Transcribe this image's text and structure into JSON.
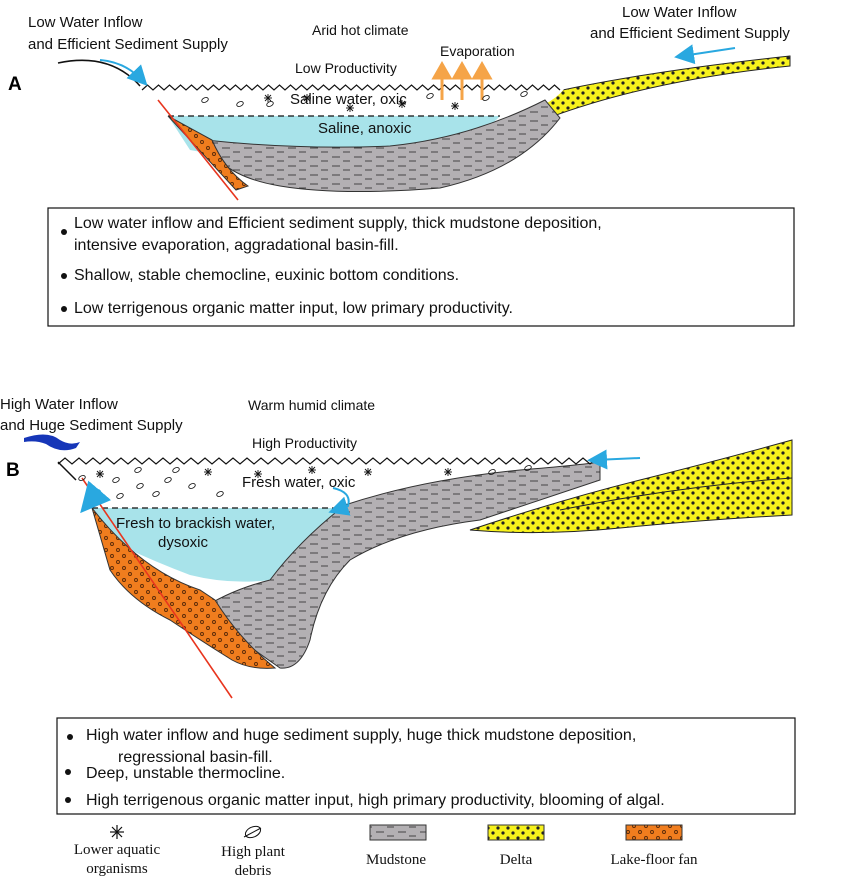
{
  "panel_a": {
    "letter": "A",
    "left_inflow": [
      "Low Water Inflow",
      "and Efficient Sediment Supply"
    ],
    "right_inflow": [
      "Low Water Inflow",
      "and Efficient Sediment Supply"
    ],
    "climate": "Arid hot climate",
    "evaporation": "Evaporation",
    "productivity": "Low Productivity",
    "upper_water": "Saline water, oxic",
    "lower_water": "Saline, anoxic",
    "bullets": [
      [
        "Low  water inflow and Efficient sediment supply,  thick mudstone deposition,",
        "intensive evaporation, aggradational basin-fill."
      ],
      [
        "Shallow, stable chemocline, euxinic bottom conditions."
      ],
      [
        "Low terrigenous organic matter input, low primary productivity."
      ]
    ]
  },
  "panel_b": {
    "letter": "B",
    "left_inflow": [
      "High Water Inflow",
      "and  Huge Sediment Supply"
    ],
    "climate": "Warm humid climate",
    "productivity": "High Productivity",
    "upper_water": "Fresh water, oxic",
    "lower_water": [
      "Fresh to  brackish water,",
      "dysoxic"
    ],
    "bullets": [
      [
        "High water inflow and huge sediment supply, huge thick mudstone deposition,",
        "regressional basin-fill."
      ],
      [
        "Deep, unstable thermocline."
      ],
      [
        "High terrigenous organic matter input, high primary productivity, blooming of algal."
      ]
    ]
  },
  "legend": [
    {
      "icon": "star-icon",
      "label": [
        "Lower aquatic",
        "organisms"
      ]
    },
    {
      "icon": "plant-debris-icon",
      "label": [
        "High plant",
        "debris"
      ]
    },
    {
      "icon": "mudstone-swatch-icon",
      "label": [
        "Mudstone"
      ]
    },
    {
      "icon": "delta-swatch-icon",
      "label": [
        "Delta"
      ]
    },
    {
      "icon": "lake-fan-swatch-icon",
      "label": [
        "Lake-floor fan"
      ]
    }
  ],
  "colors": {
    "water": "#a8e3ea",
    "mudstone": "#b3b0b3",
    "delta": "#f7f21c",
    "fan": "#f07d1e",
    "inflow_arrow_a": "#29a8e0",
    "inflow_arrow_b": "#1636b8",
    "evaporation": "#f5a448",
    "fault": "#e8351e"
  }
}
